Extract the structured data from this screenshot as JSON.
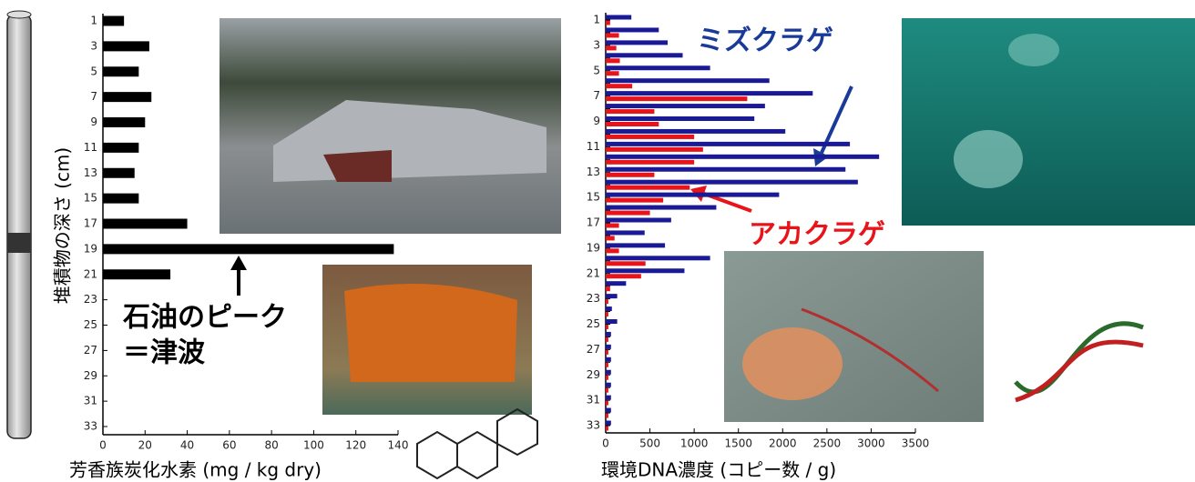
{
  "chart_data": [
    {
      "type": "hbar",
      "ylabel": "堆積物の深さ (cm)",
      "xlabel": "芳香族炭化水素 (mg / kg dry)",
      "annotations": [
        "石油のピーク",
        "＝津波"
      ],
      "categories": [
        1,
        3,
        5,
        7,
        9,
        11,
        13,
        15,
        17,
        19,
        21,
        23,
        25,
        27,
        29,
        31,
        33
      ],
      "values": [
        10,
        22,
        17,
        23,
        20,
        17,
        15,
        17,
        40,
        138,
        32,
        0,
        0,
        0,
        0,
        0,
        0
      ],
      "color": "#000000",
      "xlim": [
        0,
        140
      ],
      "xticks": [
        0,
        20,
        40,
        60,
        80,
        100,
        120,
        140
      ]
    },
    {
      "type": "hbar",
      "xlabel": "環境DNA濃度 (コピー数 / g)",
      "categories": [
        1,
        null,
        3,
        null,
        5,
        null,
        7,
        null,
        9,
        null,
        11,
        null,
        13,
        null,
        15,
        null,
        17,
        null,
        19,
        null,
        21,
        null,
        23,
        null,
        25,
        null,
        27,
        null,
        29,
        null,
        31,
        null,
        33
      ],
      "series": [
        {
          "name": "ミズクラゲ",
          "color": "#1a1a96",
          "values": [
            290,
            600,
            700,
            870,
            1180,
            1850,
            2340,
            1800,
            1680,
            2030,
            2760,
            3090,
            2710,
            2850,
            1960,
            1250,
            740,
            440,
            670,
            1180,
            890,
            230,
            130,
            70,
            130,
            60,
            60,
            60,
            60,
            60,
            60,
            60,
            60
          ]
        },
        {
          "name": "アカクラゲ",
          "color": "#e8141a",
          "values": [
            50,
            150,
            120,
            160,
            150,
            300,
            1600,
            550,
            600,
            1000,
            1100,
            1000,
            550,
            950,
            650,
            500,
            150,
            100,
            150,
            450,
            400,
            50,
            30,
            30,
            30,
            30,
            30,
            30,
            30,
            30,
            30,
            30,
            30
          ]
        }
      ],
      "xlim": [
        0,
        3500
      ],
      "xticks": [
        0,
        500,
        1000,
        1500,
        2000,
        2500,
        3000,
        3500
      ]
    }
  ]
}
